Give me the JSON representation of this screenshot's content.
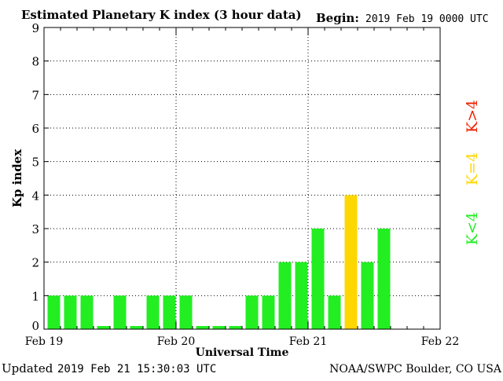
{
  "header": {
    "title": "Estimated Planetary K index (3 hour data)",
    "begin_label": "Begin:",
    "begin_value": "2019 Feb 19 0000 UTC"
  },
  "footer": {
    "updated_label": "Updated",
    "updated_value": "2019 Feb 21 15:30:03 UTC",
    "source": "NOAA/SWPC Boulder, CO USA"
  },
  "legend": {
    "items": [
      {
        "label": "K<4",
        "color": "#22ee22"
      },
      {
        "label": "K=4",
        "color": "#ffd700"
      },
      {
        "label": "K>4",
        "color": "#ee2200"
      }
    ]
  },
  "chart_data": {
    "type": "bar",
    "title": "Estimated Planetary K index (3 hour data)",
    "xlabel": "Universal Time",
    "ylabel": "Kp index",
    "ylim": [
      0,
      9
    ],
    "yticks": [
      0,
      1,
      2,
      3,
      4,
      5,
      6,
      7,
      8,
      9
    ],
    "xticks": [
      "Feb 19",
      "Feb 20",
      "Feb 21",
      "Feb 22"
    ],
    "grid": true,
    "bars_per_day": 8,
    "days": 3,
    "values": [
      1,
      1,
      1,
      0,
      1,
      0,
      1,
      1,
      1,
      0,
      0,
      0,
      1,
      1,
      2,
      2,
      3,
      1,
      4,
      2,
      3
    ],
    "colors": {
      "below4": "#22ee22",
      "equal4": "#ffd700",
      "above4": "#ee2200"
    }
  }
}
